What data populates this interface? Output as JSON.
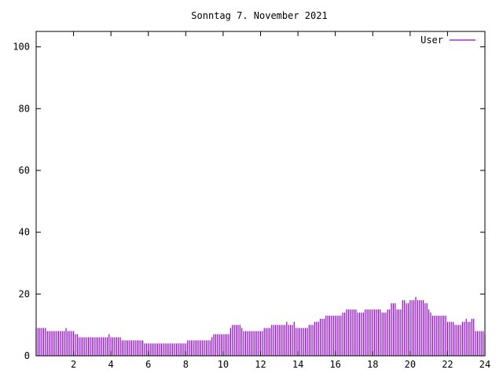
{
  "chart_data": {
    "type": "bar",
    "title": "Sonntag 7. November 2021",
    "xlabel": "",
    "ylabel": "",
    "xlim": [
      0,
      24
    ],
    "ylim": [
      0,
      105
    ],
    "x_ticks": [
      2,
      4,
      6,
      8,
      10,
      12,
      14,
      16,
      18,
      20,
      22,
      24
    ],
    "y_ticks": [
      0,
      20,
      40,
      60,
      80,
      100
    ],
    "grid": false,
    "legend_position": "top-right",
    "bar_color": "#9400d3",
    "series": [
      {
        "name": "User",
        "color": "#9400d3",
        "points": [
          [
            0.0,
            9
          ],
          [
            0.1,
            9
          ],
          [
            0.2,
            9
          ],
          [
            0.3,
            9
          ],
          [
            0.4,
            9
          ],
          [
            0.5,
            9
          ],
          [
            0.6,
            8
          ],
          [
            0.7,
            8
          ],
          [
            0.8,
            8
          ],
          [
            0.9,
            8
          ],
          [
            1.0,
            8
          ],
          [
            1.1,
            8
          ],
          [
            1.2,
            8
          ],
          [
            1.3,
            8
          ],
          [
            1.4,
            8
          ],
          [
            1.5,
            8
          ],
          [
            1.6,
            9
          ],
          [
            1.7,
            8
          ],
          [
            1.8,
            8
          ],
          [
            1.9,
            8
          ],
          [
            2.0,
            8
          ],
          [
            2.1,
            7
          ],
          [
            2.2,
            7
          ],
          [
            2.3,
            6
          ],
          [
            2.4,
            6
          ],
          [
            2.5,
            6
          ],
          [
            2.6,
            6
          ],
          [
            2.7,
            6
          ],
          [
            2.8,
            6
          ],
          [
            2.9,
            6
          ],
          [
            3.0,
            6
          ],
          [
            3.1,
            6
          ],
          [
            3.2,
            6
          ],
          [
            3.3,
            6
          ],
          [
            3.4,
            6
          ],
          [
            3.5,
            6
          ],
          [
            3.6,
            6
          ],
          [
            3.7,
            6
          ],
          [
            3.8,
            6
          ],
          [
            3.9,
            7
          ],
          [
            4.0,
            6
          ],
          [
            4.1,
            6
          ],
          [
            4.2,
            6
          ],
          [
            4.3,
            6
          ],
          [
            4.4,
            6
          ],
          [
            4.5,
            6
          ],
          [
            4.6,
            5
          ],
          [
            4.7,
            5
          ],
          [
            4.8,
            5
          ],
          [
            4.9,
            5
          ],
          [
            5.0,
            5
          ],
          [
            5.1,
            5
          ],
          [
            5.2,
            5
          ],
          [
            5.3,
            5
          ],
          [
            5.4,
            5
          ],
          [
            5.5,
            5
          ],
          [
            5.6,
            5
          ],
          [
            5.7,
            5
          ],
          [
            5.8,
            4
          ],
          [
            5.9,
            4
          ],
          [
            6.0,
            4
          ],
          [
            6.1,
            4
          ],
          [
            6.2,
            4
          ],
          [
            6.3,
            4
          ],
          [
            6.4,
            4
          ],
          [
            6.5,
            4
          ],
          [
            6.6,
            4
          ],
          [
            6.7,
            4
          ],
          [
            6.8,
            4
          ],
          [
            6.9,
            4
          ],
          [
            7.0,
            4
          ],
          [
            7.1,
            4
          ],
          [
            7.2,
            4
          ],
          [
            7.3,
            4
          ],
          [
            7.4,
            4
          ],
          [
            7.5,
            4
          ],
          [
            7.6,
            4
          ],
          [
            7.7,
            4
          ],
          [
            7.8,
            4
          ],
          [
            7.9,
            4
          ],
          [
            8.0,
            4
          ],
          [
            8.1,
            5
          ],
          [
            8.2,
            5
          ],
          [
            8.3,
            5
          ],
          [
            8.4,
            5
          ],
          [
            8.5,
            5
          ],
          [
            8.6,
            5
          ],
          [
            8.7,
            5
          ],
          [
            8.8,
            5
          ],
          [
            8.9,
            5
          ],
          [
            9.0,
            5
          ],
          [
            9.1,
            5
          ],
          [
            9.2,
            5
          ],
          [
            9.3,
            5
          ],
          [
            9.4,
            6
          ],
          [
            9.5,
            7
          ],
          [
            9.6,
            7
          ],
          [
            9.7,
            7
          ],
          [
            9.8,
            7
          ],
          [
            9.9,
            7
          ],
          [
            10.0,
            7
          ],
          [
            10.1,
            7
          ],
          [
            10.2,
            7
          ],
          [
            10.3,
            7
          ],
          [
            10.4,
            9
          ],
          [
            10.5,
            10
          ],
          [
            10.6,
            10
          ],
          [
            10.7,
            10
          ],
          [
            10.8,
            10
          ],
          [
            10.9,
            10
          ],
          [
            11.0,
            9
          ],
          [
            11.1,
            8
          ],
          [
            11.2,
            8
          ],
          [
            11.3,
            8
          ],
          [
            11.4,
            8
          ],
          [
            11.5,
            8
          ],
          [
            11.6,
            8
          ],
          [
            11.7,
            8
          ],
          [
            11.8,
            8
          ],
          [
            11.9,
            8
          ],
          [
            12.0,
            8
          ],
          [
            12.1,
            8
          ],
          [
            12.2,
            9
          ],
          [
            12.3,
            9
          ],
          [
            12.4,
            9
          ],
          [
            12.5,
            9
          ],
          [
            12.6,
            10
          ],
          [
            12.7,
            10
          ],
          [
            12.8,
            10
          ],
          [
            12.9,
            10
          ],
          [
            13.0,
            10
          ],
          [
            13.1,
            10
          ],
          [
            13.2,
            10
          ],
          [
            13.3,
            10
          ],
          [
            13.4,
            11
          ],
          [
            13.5,
            10
          ],
          [
            13.6,
            10
          ],
          [
            13.7,
            10
          ],
          [
            13.8,
            11
          ],
          [
            13.9,
            9
          ],
          [
            14.0,
            9
          ],
          [
            14.1,
            9
          ],
          [
            14.2,
            9
          ],
          [
            14.3,
            9
          ],
          [
            14.4,
            9
          ],
          [
            14.5,
            9
          ],
          [
            14.6,
            10
          ],
          [
            14.7,
            10
          ],
          [
            14.8,
            10
          ],
          [
            14.9,
            11
          ],
          [
            15.0,
            11
          ],
          [
            15.1,
            11
          ],
          [
            15.2,
            12
          ],
          [
            15.3,
            12
          ],
          [
            15.4,
            12
          ],
          [
            15.5,
            13
          ],
          [
            15.6,
            13
          ],
          [
            15.7,
            13
          ],
          [
            15.8,
            13
          ],
          [
            15.9,
            13
          ],
          [
            16.0,
            13
          ],
          [
            16.1,
            13
          ],
          [
            16.2,
            13
          ],
          [
            16.3,
            13
          ],
          [
            16.4,
            14
          ],
          [
            16.5,
            14
          ],
          [
            16.6,
            15
          ],
          [
            16.7,
            15
          ],
          [
            16.8,
            15
          ],
          [
            16.9,
            15
          ],
          [
            17.0,
            15
          ],
          [
            17.1,
            15
          ],
          [
            17.2,
            14
          ],
          [
            17.3,
            14
          ],
          [
            17.4,
            14
          ],
          [
            17.5,
            14
          ],
          [
            17.6,
            15
          ],
          [
            17.7,
            15
          ],
          [
            17.8,
            15
          ],
          [
            17.9,
            15
          ],
          [
            18.0,
            15
          ],
          [
            18.1,
            15
          ],
          [
            18.2,
            15
          ],
          [
            18.3,
            15
          ],
          [
            18.4,
            15
          ],
          [
            18.5,
            14
          ],
          [
            18.6,
            14
          ],
          [
            18.7,
            14
          ],
          [
            18.8,
            15
          ],
          [
            18.9,
            15
          ],
          [
            19.0,
            17
          ],
          [
            19.1,
            17
          ],
          [
            19.2,
            17
          ],
          [
            19.3,
            15
          ],
          [
            19.4,
            15
          ],
          [
            19.5,
            15
          ],
          [
            19.6,
            18
          ],
          [
            19.7,
            18
          ],
          [
            19.8,
            17
          ],
          [
            19.9,
            17
          ],
          [
            20.0,
            18
          ],
          [
            20.1,
            18
          ],
          [
            20.2,
            18
          ],
          [
            20.3,
            19
          ],
          [
            20.4,
            18
          ],
          [
            20.5,
            18
          ],
          [
            20.6,
            18
          ],
          [
            20.7,
            18
          ],
          [
            20.8,
            17
          ],
          [
            20.9,
            17
          ],
          [
            21.0,
            15
          ],
          [
            21.1,
            14
          ],
          [
            21.2,
            13
          ],
          [
            21.3,
            13
          ],
          [
            21.4,
            13
          ],
          [
            21.5,
            13
          ],
          [
            21.6,
            13
          ],
          [
            21.7,
            13
          ],
          [
            21.8,
            13
          ],
          [
            21.9,
            13
          ],
          [
            22.0,
            11
          ],
          [
            22.1,
            11
          ],
          [
            22.2,
            11
          ],
          [
            22.3,
            11
          ],
          [
            22.4,
            10
          ],
          [
            22.5,
            10
          ],
          [
            22.6,
            10
          ],
          [
            22.7,
            10
          ],
          [
            22.8,
            11
          ],
          [
            22.9,
            11
          ],
          [
            23.0,
            12
          ],
          [
            23.1,
            11
          ],
          [
            23.2,
            11
          ],
          [
            23.3,
            12
          ],
          [
            23.4,
            12
          ],
          [
            23.5,
            8
          ],
          [
            23.6,
            8
          ],
          [
            23.7,
            8
          ],
          [
            23.8,
            8
          ],
          [
            23.9,
            8
          ],
          [
            24.0,
            7
          ]
        ]
      }
    ]
  }
}
